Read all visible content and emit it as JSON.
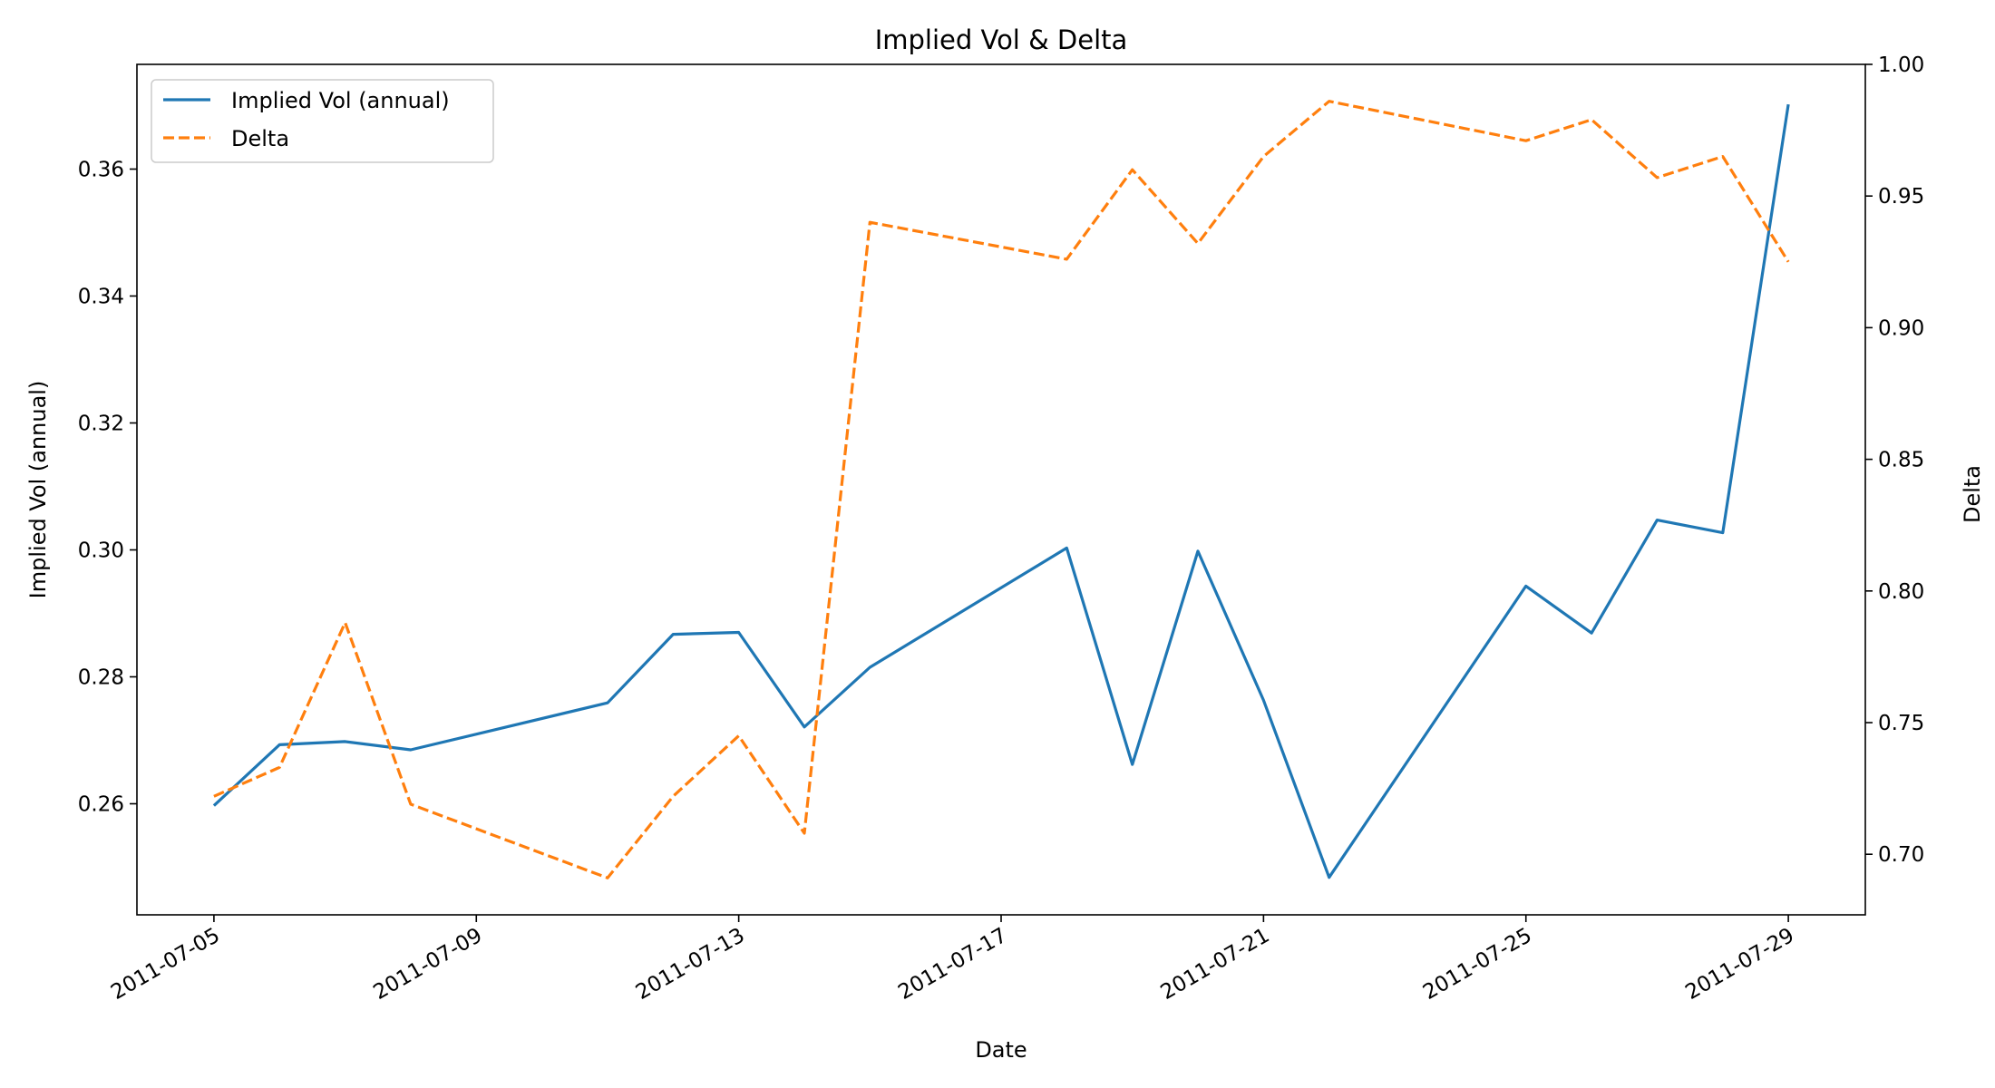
{
  "chart_data": {
    "type": "line",
    "title": "Implied Vol & Delta",
    "xlabel": "Date",
    "ylabel_left": "Implied Vol (annual)",
    "ylabel_right": "Delta",
    "x": [
      "2011-07-05",
      "2011-07-06",
      "2011-07-07",
      "2011-07-08",
      "2011-07-11",
      "2011-07-12",
      "2011-07-13",
      "2011-07-14",
      "2011-07-15",
      "2011-07-18",
      "2011-07-19",
      "2011-07-20",
      "2011-07-21",
      "2011-07-22",
      "2011-07-25",
      "2011-07-26",
      "2011-07-27",
      "2011-07-28",
      "2011-07-29"
    ],
    "xticks": [
      "2011-07-05",
      "2011-07-09",
      "2011-07-13",
      "2011-07-17",
      "2011-07-21",
      "2011-07-25",
      "2011-07-29"
    ],
    "xlim": [
      "2011-07-03T19:50",
      "2011-07-30T04:10"
    ],
    "ylim_left": [
      0.2425,
      0.3765
    ],
    "yticks_left": [
      "0.26",
      "0.28",
      "0.30",
      "0.32",
      "0.34",
      "0.36"
    ],
    "ylim_right": [
      0.677,
      1.0
    ],
    "yticks_right": [
      "0.70",
      "0.75",
      "0.80",
      "0.85",
      "0.90",
      "0.95",
      "1.00"
    ],
    "grid": false,
    "legend_position": "upper left",
    "series": [
      {
        "name": "Implied Vol (annual)",
        "axis": "left",
        "color": "#1f77b4",
        "style": "solid",
        "values": [
          0.2597,
          0.2693,
          0.2698,
          0.2685,
          0.2759,
          0.2867,
          0.287,
          0.2721,
          0.2815,
          0.3003,
          0.2662,
          0.2998,
          0.2763,
          0.2484,
          0.2943,
          0.2869,
          0.3047,
          0.3027,
          0.3702
        ]
      },
      {
        "name": "Delta",
        "axis": "right",
        "color": "#ff7f0e",
        "style": "dashed",
        "values": [
          0.722,
          0.733,
          0.788,
          0.719,
          0.691,
          0.722,
          0.745,
          0.708,
          0.94,
          0.926,
          0.96,
          0.932,
          0.965,
          0.986,
          0.971,
          0.979,
          0.957,
          0.965,
          0.925
        ]
      }
    ]
  }
}
